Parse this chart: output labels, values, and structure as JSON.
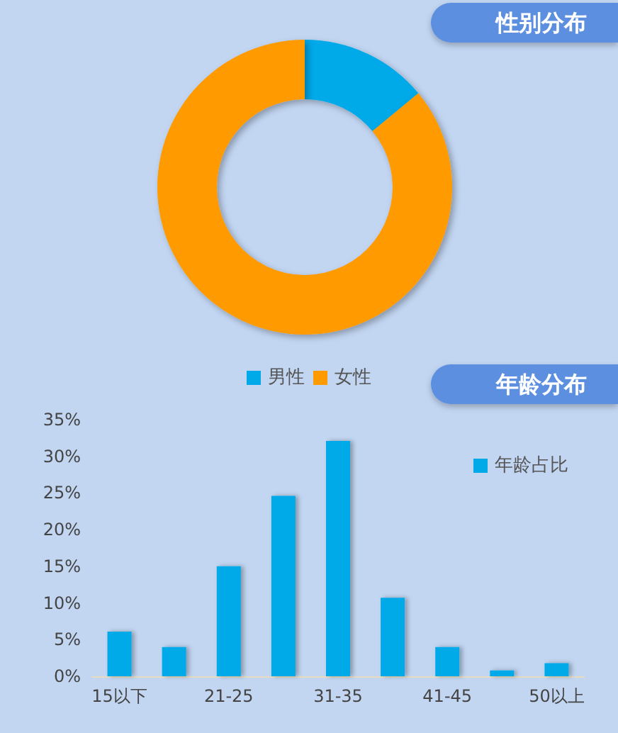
{
  "chart_data": [
    {
      "type": "donut",
      "title": "性别分布",
      "categories": [
        "男性",
        "女性"
      ],
      "values": [
        14,
        86
      ],
      "colors": [
        "#00a9e8",
        "#ff9a00"
      ],
      "legend": "bottom"
    },
    {
      "type": "bar",
      "title": "年龄分布",
      "categories": [
        "15以下",
        null,
        "21-25",
        null,
        "31-35",
        null,
        "41-45",
        null,
        "50以上"
      ],
      "series": [
        {
          "name": "年龄占比",
          "color": "#00a9e8",
          "values": [
            6.1,
            4.0,
            15.0,
            24.6,
            32.1,
            10.7,
            4.0,
            0.8,
            1.8
          ]
        }
      ],
      "ylim": [
        0,
        35
      ],
      "yticks": [
        {
          "value": 0,
          "label": "0%"
        },
        {
          "value": 5,
          "label": "5%"
        },
        {
          "value": 10,
          "label": "10%"
        },
        {
          "value": 15,
          "label": "15%"
        },
        {
          "value": 20,
          "label": "20%"
        },
        {
          "value": 25,
          "label": "25%"
        },
        {
          "value": 30,
          "label": "30%"
        },
        {
          "value": 35,
          "label": "35%"
        }
      ],
      "legend": "top right"
    }
  ]
}
